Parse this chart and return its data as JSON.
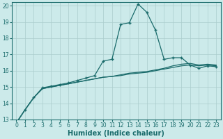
{
  "xlabel": "Humidex (Indice chaleur)",
  "bg_color": "#cceaea",
  "grid_color": "#aacccc",
  "line_color": "#1a6b6b",
  "xlim": [
    -0.5,
    23.5
  ],
  "ylim": [
    13,
    20.2
  ],
  "yticks": [
    13,
    14,
    15,
    16,
    17,
    18,
    19,
    20
  ],
  "xticks": [
    0,
    1,
    2,
    3,
    4,
    5,
    6,
    7,
    8,
    9,
    10,
    11,
    12,
    13,
    14,
    15,
    16,
    17,
    18,
    19,
    20,
    21,
    22,
    23
  ],
  "series_smooth1": [
    12.8,
    13.6,
    14.35,
    14.9,
    15.0,
    15.1,
    15.2,
    15.3,
    15.4,
    15.5,
    15.6,
    15.65,
    15.7,
    15.8,
    15.85,
    15.9,
    16.0,
    16.1,
    16.2,
    16.3,
    16.35,
    16.3,
    16.35,
    16.3
  ],
  "series_smooth2": [
    12.8,
    13.6,
    14.35,
    14.9,
    15.0,
    15.1,
    15.2,
    15.3,
    15.4,
    15.5,
    15.6,
    15.65,
    15.75,
    15.85,
    15.9,
    15.95,
    16.05,
    16.15,
    16.3,
    16.4,
    16.45,
    16.35,
    16.4,
    16.35
  ],
  "series_peaked": [
    12.8,
    13.6,
    14.35,
    14.95,
    15.05,
    15.15,
    15.25,
    15.4,
    15.55,
    15.7,
    16.6,
    16.7,
    18.85,
    18.95,
    20.1,
    19.6,
    18.5,
    16.7,
    16.8,
    16.8,
    16.35,
    16.15,
    16.3,
    16.25
  ]
}
